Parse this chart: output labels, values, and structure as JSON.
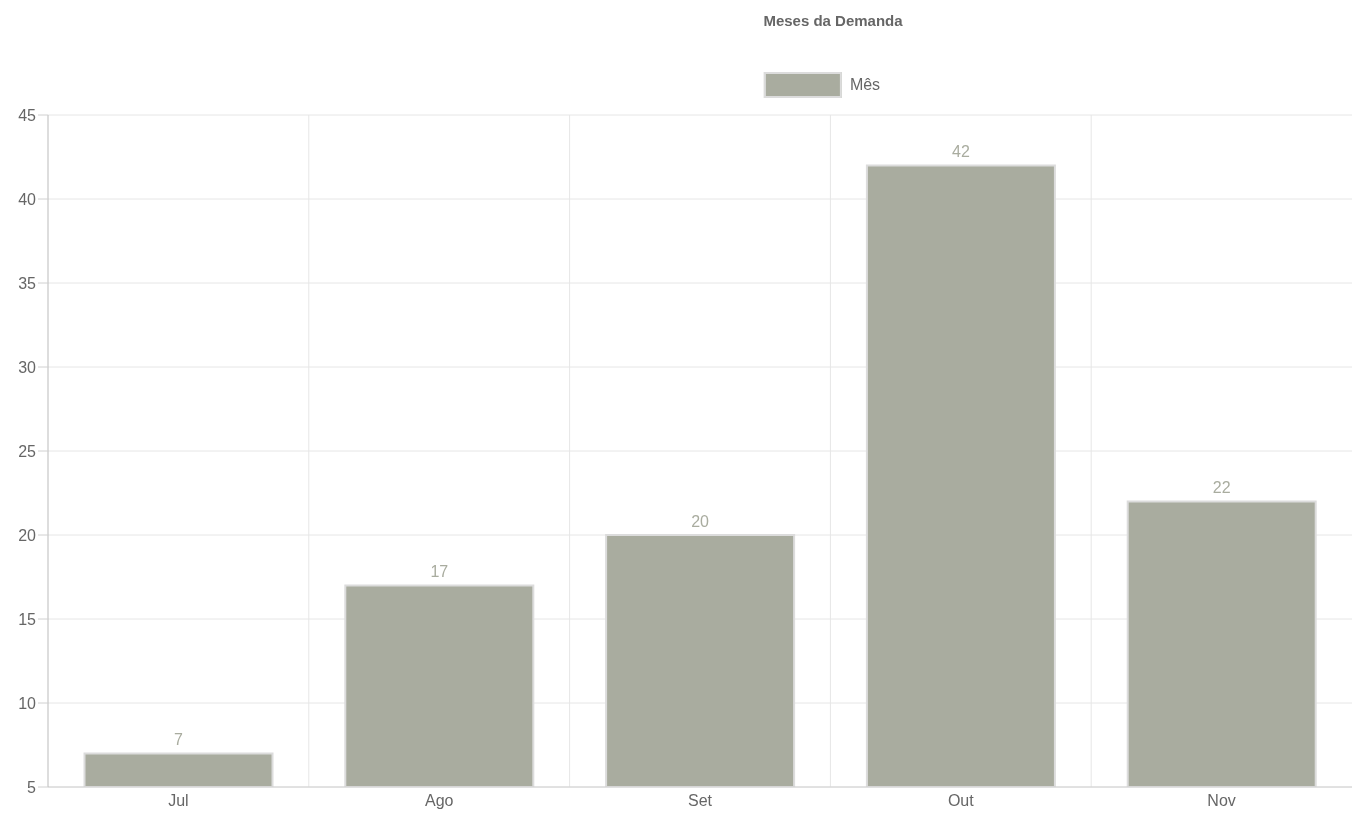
{
  "chart_data": {
    "type": "bar",
    "title": "Meses da Demanda",
    "categories": [
      "Jul",
      "Ago",
      "Set",
      "Out",
      "Nov"
    ],
    "series": [
      {
        "name": "Mês",
        "color": "#a9ac9f",
        "values": [
          7,
          17,
          20,
          42,
          22
        ]
      }
    ],
    "ylim": [
      5,
      45
    ],
    "yticks": [
      5,
      10,
      15,
      20,
      25,
      30,
      35,
      40,
      45
    ],
    "grid": true,
    "legend": "top",
    "data_labels": true
  }
}
